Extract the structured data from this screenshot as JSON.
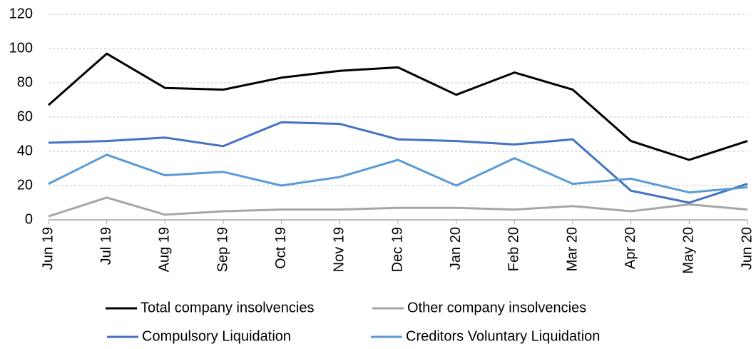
{
  "chart_data": {
    "type": "line",
    "x": [
      "Jun 19",
      "Jul 19",
      "Aug 19",
      "Sep 19",
      "Oct 19",
      "Nov 19",
      "Dec 19",
      "Jan 20",
      "Feb 20",
      "Mar 20",
      "Apr 20",
      "May 20",
      "Jun 20"
    ],
    "series": [
      {
        "name": "Total company insolvencies",
        "color": "#000000",
        "values": [
          67,
          97,
          77,
          76,
          83,
          87,
          89,
          73,
          86,
          76,
          46,
          35,
          46
        ]
      },
      {
        "name": "Other company insolvencies",
        "color": "#a6a6a6",
        "values": [
          2,
          13,
          3,
          5,
          6,
          6,
          7,
          7,
          6,
          8,
          5,
          9,
          6
        ]
      },
      {
        "name": "Compulsory Liquidation",
        "color": "#4472c4",
        "values": [
          45,
          46,
          48,
          43,
          57,
          56,
          47,
          46,
          44,
          47,
          17,
          10,
          21
        ]
      },
      {
        "name": "Creditors Voluntary Liquidation",
        "color": "#5b9bd5",
        "values": [
          21,
          38,
          26,
          28,
          20,
          25,
          35,
          20,
          36,
          21,
          24,
          16,
          19
        ]
      }
    ],
    "ylim": [
      0,
      120
    ],
    "yticks": [
      0,
      20,
      40,
      60,
      80,
      100,
      120
    ],
    "grid": true,
    "legend": "bottom"
  }
}
